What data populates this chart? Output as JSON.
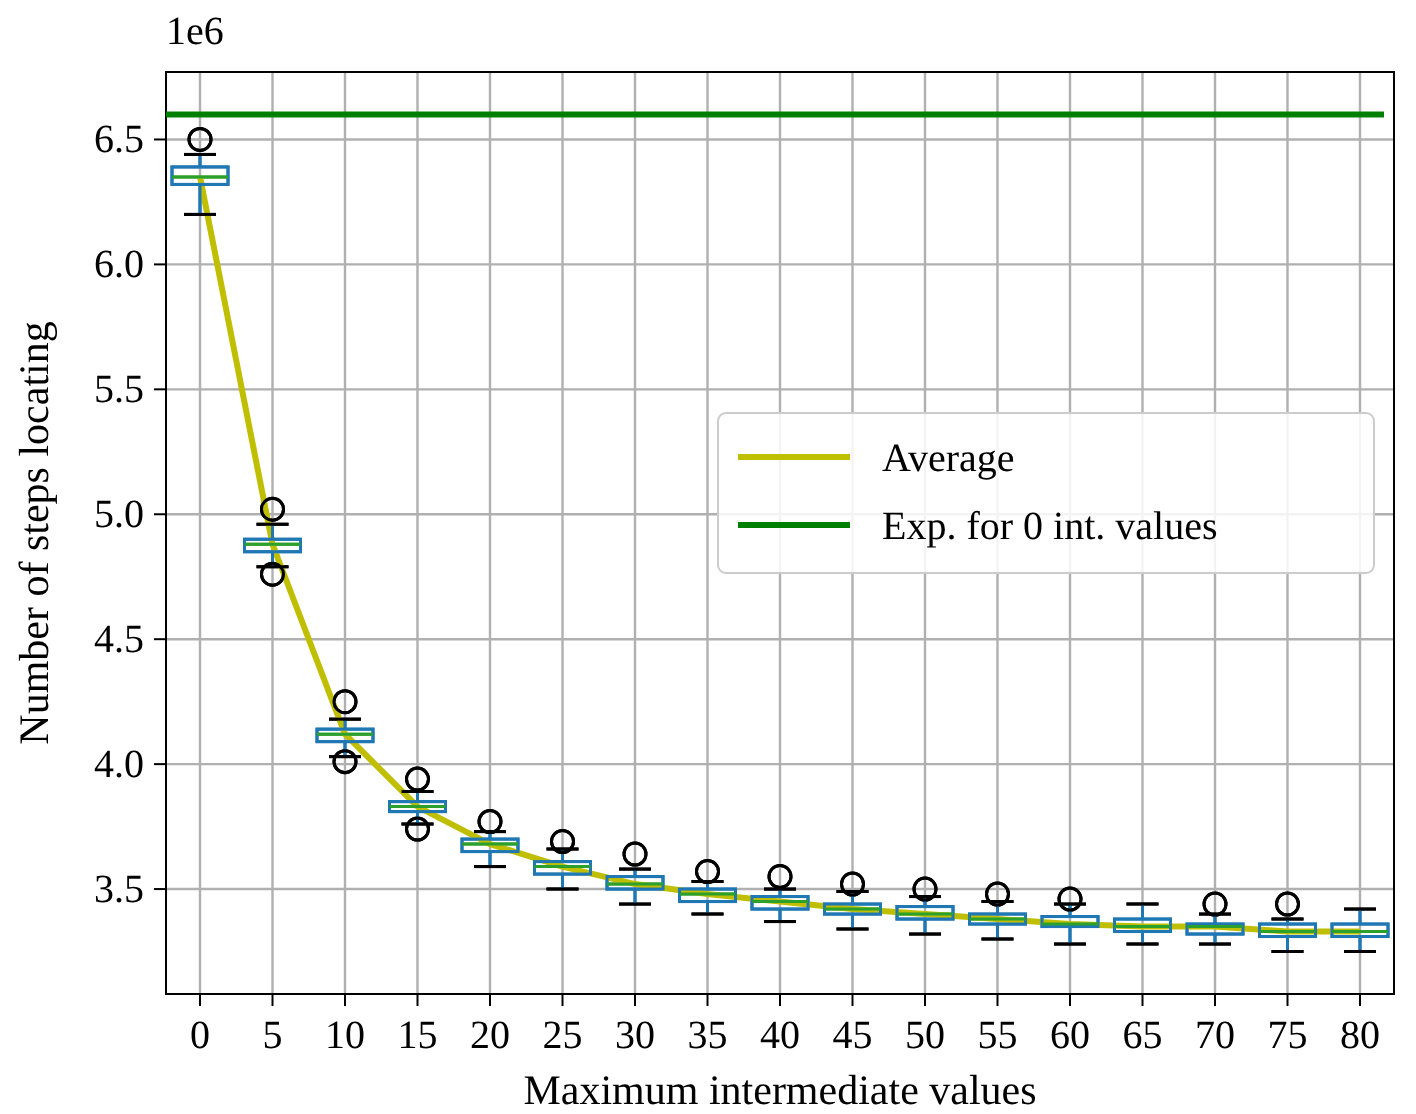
{
  "chart_data": {
    "type": "box",
    "xlabel": "Maximum intermediate values",
    "ylabel": "Number of steps locating",
    "annotations": [
      "1e6"
    ],
    "categories": [
      "0",
      "5",
      "10",
      "15",
      "20",
      "25",
      "30",
      "35",
      "40",
      "45",
      "50",
      "55",
      "60",
      "65",
      "70",
      "75",
      "80"
    ],
    "ylim": [
      3.08,
      6.77
    ],
    "yticks": [
      3.5,
      {
        "value": 4,
        "label": "4.0"
      },
      4.5,
      {
        "value": 5,
        "label": "5.0"
      },
      5.5,
      {
        "value": 6,
        "label": "6.0"
      },
      6.5
    ],
    "grid": true,
    "legend": "center right",
    "series": [
      {
        "color": "#1f77b4",
        "boxes": [
          {
            "low": 6.2,
            "q1": 6.32,
            "median": 6.35,
            "q3": 6.39,
            "high": 6.44,
            "outliers": [
              6.5
            ]
          },
          {
            "low": 4.79,
            "q1": 4.85,
            "median": 4.88,
            "q3": 4.9,
            "high": 4.96,
            "outliers": [
              5.02,
              4.76
            ]
          },
          {
            "low": 4.03,
            "q1": 4.09,
            "median": 4.12,
            "q3": 4.14,
            "high": 4.18,
            "outliers": [
              4.25,
              4.01
            ]
          },
          {
            "low": 3.76,
            "q1": 3.81,
            "median": 3.83,
            "q3": 3.85,
            "high": 3.89,
            "outliers": [
              3.94,
              3.74
            ]
          },
          {
            "low": 3.59,
            "q1": 3.65,
            "median": 3.68,
            "q3": 3.7,
            "high": 3.73,
            "outliers": [
              3.77
            ]
          },
          {
            "low": 3.5,
            "q1": 3.56,
            "median": 3.59,
            "q3": 3.61,
            "high": 3.66,
            "outliers": [
              3.69
            ]
          },
          {
            "low": 3.44,
            "q1": 3.5,
            "median": 3.52,
            "q3": 3.55,
            "high": 3.58,
            "outliers": [
              3.64
            ]
          },
          {
            "low": 3.4,
            "q1": 3.45,
            "median": 3.48,
            "q3": 3.5,
            "high": 3.53,
            "outliers": [
              3.57
            ]
          },
          {
            "low": 3.37,
            "q1": 3.42,
            "median": 3.45,
            "q3": 3.47,
            "high": 3.5,
            "outliers": [
              3.55
            ]
          },
          {
            "low": 3.34,
            "q1": 3.4,
            "median": 3.42,
            "q3": 3.44,
            "high": 3.49,
            "outliers": [
              3.52
            ]
          },
          {
            "low": 3.32,
            "q1": 3.38,
            "median": 3.4,
            "q3": 3.43,
            "high": 3.47,
            "outliers": [
              3.5
            ]
          },
          {
            "low": 3.3,
            "q1": 3.36,
            "median": 3.38,
            "q3": 3.4,
            "high": 3.45,
            "outliers": [
              3.48
            ]
          },
          {
            "low": 3.28,
            "q1": 3.35,
            "median": 3.36,
            "q3": 3.39,
            "high": 3.44,
            "outliers": [
              3.46
            ]
          },
          {
            "low": 3.28,
            "q1": 3.33,
            "median": 3.35,
            "q3": 3.38,
            "high": 3.44
          },
          {
            "low": 3.28,
            "q1": 3.32,
            "median": 3.35,
            "q3": 3.36,
            "high": 3.4,
            "outliers": [
              3.44
            ]
          },
          {
            "low": 3.25,
            "q1": 3.31,
            "median": 3.33,
            "q3": 3.36,
            "high": 3.38,
            "outliers": [
              3.44
            ]
          },
          {
            "low": 3.25,
            "q1": 3.31,
            "median": 3.33,
            "q3": 3.36,
            "high": 3.42
          }
        ]
      },
      {
        "type": "line",
        "name": "Average",
        "color": "#bfbf00",
        "values": [
          6.35,
          4.88,
          4.12,
          3.83,
          3.68,
          3.59,
          3.52,
          3.48,
          3.45,
          3.42,
          3.4,
          3.38,
          3.36,
          3.35,
          3.35,
          3.33,
          3.33
        ]
      }
    ],
    "ref_lines": [
      {
        "axis": "y",
        "value": 6.6,
        "label": "Exp. for 0 int. values",
        "color": "#008000"
      }
    ]
  }
}
